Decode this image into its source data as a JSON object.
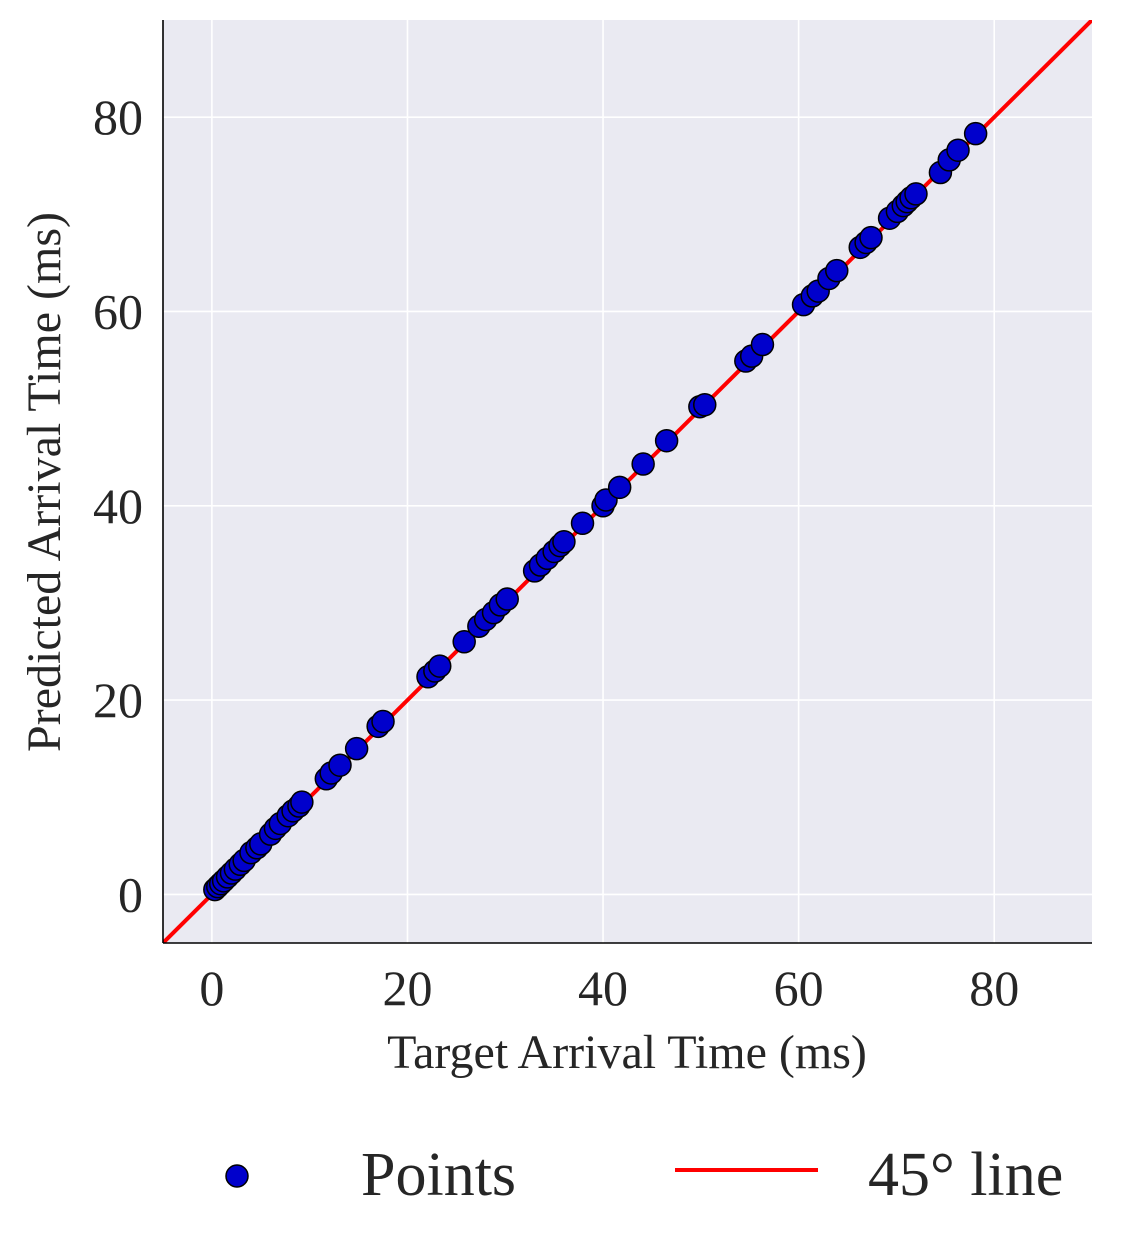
{
  "chart_data": {
    "type": "scatter",
    "title": "",
    "xlabel": "Target Arrival Time (ms)",
    "ylabel": "Predicted Arrival Time (ms)",
    "xlim": [
      -5,
      90
    ],
    "ylim": [
      -5,
      90
    ],
    "xticks": [
      0,
      20,
      40,
      60,
      80
    ],
    "yticks": [
      0,
      20,
      40,
      60,
      80
    ],
    "grid": true,
    "legend_position": "bottom",
    "colors": {
      "plot_background": "#eaeaf2",
      "grid": "#ffffff",
      "points_fill": "#0000cc",
      "points_edge": "#000000",
      "line": "#ff0000"
    },
    "series": [
      {
        "name": "Points",
        "kind": "scatter",
        "x": [
          0.3,
          0.6,
          0.9,
          1.2,
          1.6,
          2.0,
          2.4,
          2.9,
          3.3,
          4.0,
          4.6,
          5.0,
          6.0,
          6.5,
          7.0,
          7.8,
          8.3,
          8.9,
          9.2,
          11.7,
          12.2,
          13.1,
          14.8,
          17.0,
          17.5,
          22.1,
          22.8,
          23.3,
          25.8,
          27.3,
          28.0,
          28.8,
          29.5,
          30.2,
          33.0,
          33.6,
          34.3,
          35.0,
          35.6,
          36.0,
          37.9,
          40.0,
          40.3,
          41.7,
          44.1,
          46.5,
          49.9,
          50.4,
          54.6,
          55.2,
          56.3,
          60.5,
          61.4,
          62.0,
          63.1,
          63.9,
          66.3,
          66.9,
          67.4,
          69.3,
          70.1,
          70.7,
          71.1,
          71.5,
          72.0,
          74.5,
          75.4,
          76.3,
          78.1
        ],
        "y": [
          0.5,
          0.8,
          1.1,
          1.4,
          1.8,
          2.2,
          2.6,
          3.1,
          3.5,
          4.3,
          4.8,
          5.2,
          6.2,
          6.8,
          7.3,
          8.1,
          8.6,
          9.1,
          9.5,
          11.9,
          12.5,
          13.3,
          15.0,
          17.3,
          17.8,
          22.4,
          23.0,
          23.5,
          26.0,
          27.6,
          28.3,
          29.0,
          29.8,
          30.4,
          33.3,
          33.9,
          34.6,
          35.3,
          35.9,
          36.3,
          38.2,
          40.0,
          40.6,
          41.9,
          44.3,
          46.7,
          50.2,
          50.4,
          54.9,
          55.4,
          56.6,
          60.7,
          61.6,
          62.1,
          63.4,
          64.2,
          66.6,
          67.1,
          67.6,
          69.6,
          70.3,
          70.9,
          71.3,
          71.7,
          72.1,
          74.3,
          75.6,
          76.6,
          78.3
        ]
      },
      {
        "name": "45° line",
        "kind": "line",
        "x": [
          -5,
          90
        ],
        "y": [
          -5,
          90
        ]
      }
    ]
  }
}
